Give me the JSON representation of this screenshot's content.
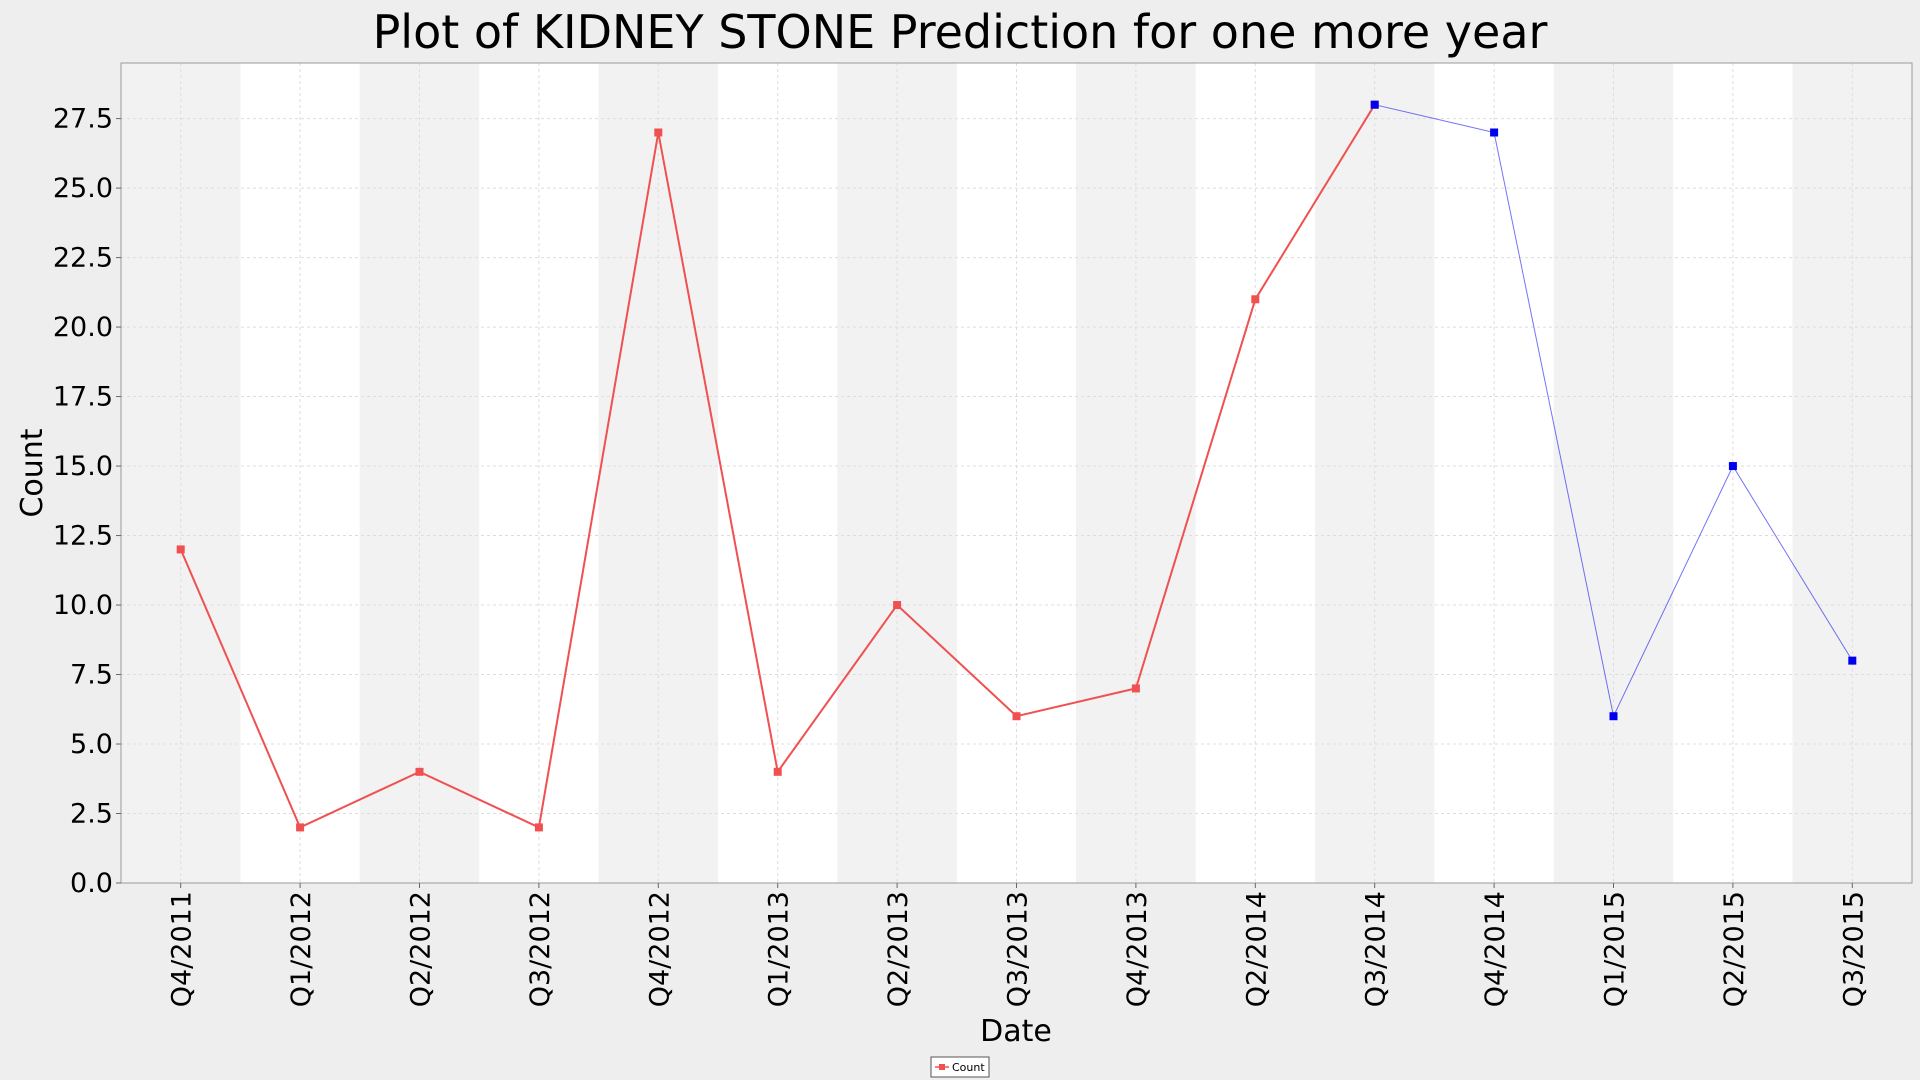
{
  "chart_data": {
    "type": "line",
    "title": "Plot of KIDNEY STONE Prediction for one more year",
    "xlabel": "Date",
    "ylabel": "Count",
    "ylim": [
      0,
      29.5
    ],
    "yticks": [
      "0.0",
      "2.5",
      "5.0",
      "7.5",
      "10.0",
      "12.5",
      "15.0",
      "17.5",
      "20.0",
      "22.5",
      "25.0",
      "27.5"
    ],
    "categories": [
      "Q4/2011",
      "Q1/2012",
      "Q2/2012",
      "Q3/2012",
      "Q4/2012",
      "Q1/2013",
      "Q2/2013",
      "Q3/2013",
      "Q4/2013",
      "Q2/2014",
      "Q3/2014",
      "Q4/2014",
      "Q1/2015",
      "Q2/2015",
      "Q3/2015"
    ],
    "grid": true,
    "legend_position": "bottom-center",
    "series": [
      {
        "name": "Count",
        "color": "#f05050",
        "x": [
          "Q4/2011",
          "Q1/2012",
          "Q2/2012",
          "Q3/2012",
          "Q4/2012",
          "Q1/2013",
          "Q2/2013",
          "Q3/2013",
          "Q4/2013",
          "Q2/2014",
          "Q3/2014"
        ],
        "values": [
          12,
          2,
          4,
          2,
          27,
          4,
          10,
          6,
          7,
          21,
          28
        ]
      },
      {
        "color": "#0000ee",
        "x": [
          "Q3/2014",
          "Q4/2014",
          "Q1/2015",
          "Q2/2015",
          "Q3/2015"
        ],
        "values": [
          28,
          27,
          6,
          15,
          8
        ]
      }
    ]
  }
}
